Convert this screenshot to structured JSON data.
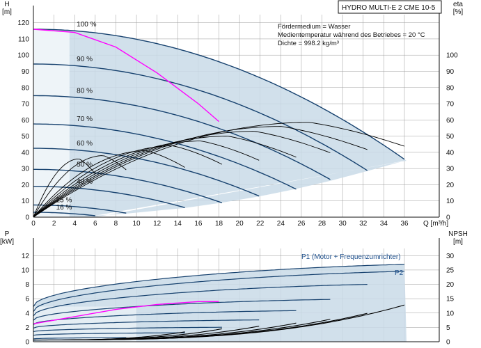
{
  "header": {
    "title": "HYDRO MULTI-E 2 CME 10-5"
  },
  "notes": [
    "Fördermedium = Wasser",
    "Medientemperatur während des Betriebes = 20 °C",
    "Dichte = 998.2 kg/m³"
  ],
  "colors": {
    "envelope": "#c9dbe8",
    "curve": "#16416e",
    "bep": "#000000",
    "system": "#ff00ff",
    "efficiency": "#000000",
    "grid": "#9a9a9a",
    "text": "#111111"
  },
  "chart_data": [
    {
      "type": "line",
      "name_axis": "Q-H",
      "xlabel": "Q [m³/h]",
      "ylabel": "H\n[m]",
      "y2label": "eta\n[%]",
      "xlim": [
        0,
        36
      ],
      "ylim": [
        0,
        125
      ],
      "y2lim": [
        0,
        125
      ],
      "x_ticks": [
        0,
        2,
        4,
        6,
        8,
        10,
        12,
        14,
        16,
        18,
        20,
        22,
        24,
        26,
        28,
        30,
        32,
        34,
        36
      ],
      "y_ticks": [
        0,
        10,
        20,
        30,
        40,
        50,
        60,
        70,
        80,
        90,
        100,
        110,
        120
      ],
      "y2_ticks": [
        0,
        10,
        20,
        30,
        40,
        50,
        60,
        70,
        80,
        90,
        100
      ],
      "speed_curves": [
        {
          "label": "100 %",
          "h0": 116,
          "qmax": 36.2
        },
        {
          "label": "90 %",
          "h0": 94.5,
          "qmax": 32.5
        },
        {
          "label": "80 %",
          "h0": 75,
          "qmax": 29
        },
        {
          "label": "70 %",
          "h0": 57.5,
          "qmax": 25.5
        },
        {
          "label": "60 %",
          "h0": 42.5,
          "qmax": 22
        },
        {
          "label": "50 %",
          "h0": 29.5,
          "qmax": 18.3
        },
        {
          "label": "40 %",
          "h0": 19,
          "qmax": 14.8
        },
        {
          "label": "25 %",
          "h0": 7.5,
          "qmax": 9.2
        },
        {
          "label": "16 %",
          "h0": 3,
          "qmax": 6
        }
      ],
      "system_curve": {
        "x": [
          0,
          4,
          8,
          12,
          16,
          18
        ],
        "y": [
          116,
          114,
          105,
          89,
          70,
          59
        ]
      },
      "efficiency_curves": [
        {
          "qmax": 36.2,
          "peak": 58.5
        },
        {
          "qmax": 32.5,
          "peak": 56
        },
        {
          "qmax": 29,
          "peak": 53
        },
        {
          "qmax": 25.5,
          "peak": 50
        },
        {
          "qmax": 22,
          "peak": 47
        },
        {
          "qmax": 18.3,
          "peak": 44
        },
        {
          "qmax": 14.8,
          "peak": 41
        },
        {
          "qmax": 9.2,
          "peak": 38
        },
        {
          "qmax": 6,
          "peak": 36
        }
      ]
    },
    {
      "type": "line",
      "name_axis": "P-NPSH",
      "ylabel": "P\n[kW]",
      "y2label": "NPSH\n[m]",
      "xlim": [
        0,
        36
      ],
      "ylim": [
        0,
        13
      ],
      "y2lim": [
        0,
        32.5
      ],
      "y_ticks": [
        0,
        2,
        4,
        6,
        8,
        10,
        12
      ],
      "y2_ticks": [
        0,
        5,
        10,
        15,
        20,
        25,
        30
      ],
      "legend": [
        "P1 (Motor + Frequenzumrichter)",
        "P2"
      ],
      "power_curves": [
        {
          "p0": 4.9,
          "p1": 11.6,
          "qmax": 36.2
        },
        {
          "p0": 4.2,
          "p1": 10.6,
          "qmax": 36.2
        },
        {
          "p0": 3.6,
          "p1": 8.6,
          "qmax": 32.5
        },
        {
          "p0": 3.0,
          "p1": 6.3,
          "qmax": 29
        },
        {
          "p0": 2.4,
          "p1": 4.6,
          "qmax": 25.5
        },
        {
          "p0": 1.9,
          "p1": 3.2,
          "qmax": 22
        },
        {
          "p0": 1.4,
          "p1": 2.1,
          "qmax": 18.3
        },
        {
          "p0": 0.9,
          "p1": 1.3,
          "qmax": 14.8
        },
        {
          "p0": 0.4,
          "p1": 0.6,
          "qmax": 9.2
        },
        {
          "p0": 0.2,
          "p1": 0.3,
          "qmax": 6
        }
      ],
      "system_power": {
        "x": [
          0,
          4,
          8,
          12,
          16,
          18
        ],
        "y": [
          2.5,
          3.5,
          4.5,
          5.2,
          5.6,
          5.6
        ]
      },
      "npsh_curves": [
        {
          "qmax": 36.2,
          "top": 13
        },
        {
          "qmax": 32.5,
          "top": 10
        },
        {
          "qmax": 29,
          "top": 8
        },
        {
          "qmax": 25.5,
          "top": 6.5
        },
        {
          "qmax": 22,
          "top": 5.5
        },
        {
          "qmax": 18.3,
          "top": 4.5
        },
        {
          "qmax": 14.8,
          "top": 3.5
        }
      ]
    }
  ]
}
